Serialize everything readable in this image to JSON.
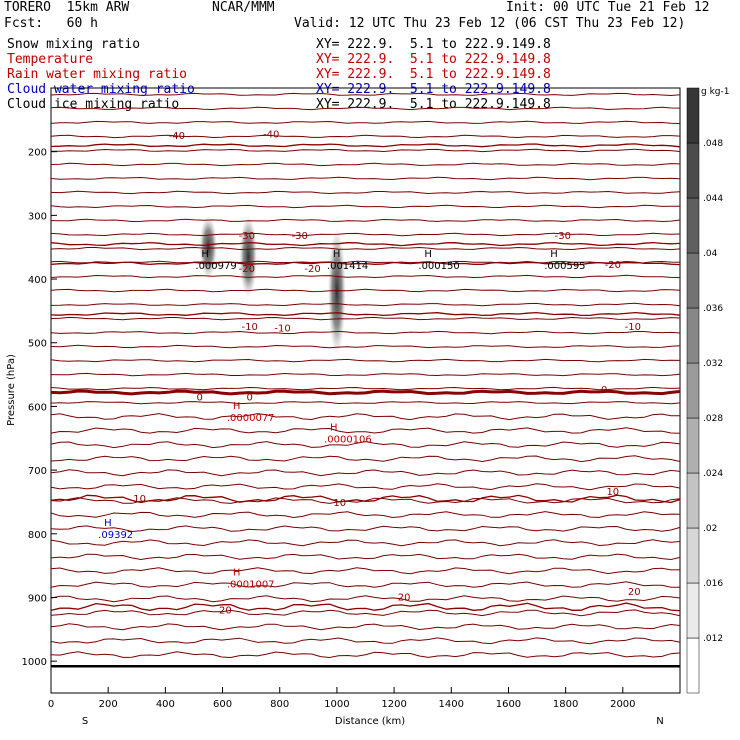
{
  "header": {
    "model": "TORERO  15km ARW",
    "center": "NCAR/MMM",
    "init": "Init: 00 UTC Tue 21 Feb 12",
    "fcst": "Fcst:   60 h",
    "valid": "Valid: 12 UTC Thu 23 Feb 12 (06 CST Thu 23 Feb 12)"
  },
  "legend": [
    {
      "name": "Snow mixing ratio",
      "xy": "XY= 222.9.  5.1 to 222.9.149.8",
      "color": "#000000"
    },
    {
      "name": "Temperature",
      "xy": "XY= 222.9.  5.1 to 222.9.149.8",
      "color": "#c00000"
    },
    {
      "name": "Rain water mixing ratio",
      "xy": "XY= 222.9.  5.1 to 222.9.149.8",
      "color": "#c00000"
    },
    {
      "name": "Cloud water mixing ratio",
      "xy": "XY= 222.9.  5.1 to 222.9.149.8",
      "color": "#0000c0"
    },
    {
      "name": "Cloud ice mixing ratio",
      "xy": "XY= 222.9.  5.1 to 222.9.149.8",
      "color": "#000000"
    }
  ],
  "chart_data": {
    "type": "cross-section",
    "xlabel": "Distance (km)",
    "ylabel": "Pressure (hPa)",
    "xlim": [
      0,
      2200
    ],
    "ylim": [
      1050,
      100
    ],
    "x_ticks": [
      "0",
      "200",
      "400",
      "600",
      "800",
      "1000",
      "1200",
      "1400",
      "1600",
      "1800",
      "2000"
    ],
    "y_ticks": [
      "200",
      "300",
      "400",
      "500",
      "600",
      "700",
      "800",
      "900",
      "1000"
    ],
    "left_end": "S",
    "right_end": "N",
    "colorbar": {
      "unit": "g kg-1",
      "ticks": [
        ".012",
        ".016",
        ".02",
        ".024",
        ".028",
        ".032",
        ".036",
        ".04",
        ".044",
        ".048"
      ]
    },
    "isotherms": [
      {
        "label": "-40",
        "p": 190
      },
      {
        "label": "-30",
        "p": 345
      },
      {
        "label": "-20",
        "p": 375
      },
      {
        "label": "-10",
        "p": 455
      },
      {
        "label": "0",
        "p": 578
      },
      {
        "label": "10",
        "p": 745
      },
      {
        "label": "20",
        "p": 915
      }
    ],
    "isotherm_labels": [
      {
        "text": "-40",
        "x": 440,
        "p": 180
      },
      {
        "text": "-40",
        "x": 770,
        "p": 178
      },
      {
        "text": "-30",
        "x": 685,
        "p": 337
      },
      {
        "text": "-30",
        "x": 870,
        "p": 337
      },
      {
        "text": "-30",
        "x": 1790,
        "p": 337
      },
      {
        "text": "-20",
        "x": 685,
        "p": 389
      },
      {
        "text": "-20",
        "x": 915,
        "p": 389
      },
      {
        "text": "-20",
        "x": 1965,
        "p": 383
      },
      {
        "text": "-10",
        "x": 695,
        "p": 480
      },
      {
        "text": "-10",
        "x": 810,
        "p": 482
      },
      {
        "text": "-10",
        "x": 2035,
        "p": 480
      },
      {
        "text": "0",
        "x": 520,
        "p": 591
      },
      {
        "text": "0",
        "x": 695,
        "p": 591
      },
      {
        "text": "0",
        "x": 1935,
        "p": 579
      },
      {
        "text": "10",
        "x": 310,
        "p": 750
      },
      {
        "text": "10",
        "x": 1010,
        "p": 756
      },
      {
        "text": "10",
        "x": 1965,
        "p": 739
      },
      {
        "text": "20",
        "x": 610,
        "p": 925
      },
      {
        "text": "20",
        "x": 1235,
        "p": 905
      },
      {
        "text": "20",
        "x": 2040,
        "p": 896
      }
    ],
    "snow_cores": [
      {
        "x": 550,
        "p_top": 300,
        "p_bot": 400
      },
      {
        "x": 690,
        "p_top": 300,
        "p_bot": 430
      },
      {
        "x": 1000,
        "p_top": 320,
        "p_bot": 520
      }
    ],
    "maxima": [
      {
        "marker": "H",
        "value": ".000979",
        "x": 540,
        "p": 378,
        "color": "#000000"
      },
      {
        "marker": "H",
        "value": ".001414",
        "x": 1000,
        "p": 378,
        "color": "#000000"
      },
      {
        "marker": "H",
        "value": ".000150",
        "x": 1320,
        "p": 378,
        "color": "#000000"
      },
      {
        "marker": "H",
        "value": ".000595",
        "x": 1760,
        "p": 378,
        "color": "#000000"
      },
      {
        "marker": "H",
        "value": ".0000077",
        "x": 650,
        "p": 617,
        "color": "#c00000"
      },
      {
        "marker": "H",
        "value": ".0000106",
        "x": 990,
        "p": 650,
        "color": "#c00000"
      },
      {
        "marker": "H",
        "value": ".0001007",
        "x": 650,
        "p": 878,
        "color": "#c00000"
      },
      {
        "marker": "H",
        "value": ".09392",
        "x": 200,
        "p": 800,
        "color": "#0000c0"
      }
    ]
  }
}
